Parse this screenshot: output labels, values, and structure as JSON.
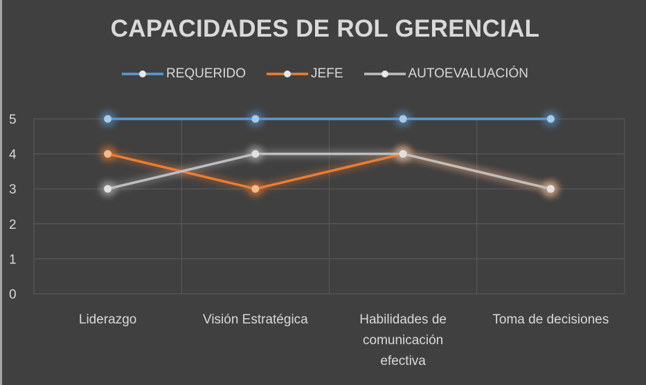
{
  "chart_data": {
    "type": "line",
    "title": "CAPACIDADES DE ROL GERENCIAL",
    "categories": [
      [
        "Liderazgo"
      ],
      [
        "Visión Estratégica"
      ],
      [
        "Habilidades de",
        "comunicación",
        "efectiva"
      ],
      [
        "Toma de decisiones"
      ]
    ],
    "series": [
      {
        "name": "REQUERIDO",
        "color": "#5b9bd5",
        "values": [
          5,
          5,
          5,
          5
        ]
      },
      {
        "name": "JEFE",
        "color": "#ed7d31",
        "values": [
          4,
          3,
          4,
          3
        ]
      },
      {
        "name": "AUTOEVALUACIÓN",
        "color": "#bfbfbf",
        "values": [
          3,
          4,
          4,
          3
        ]
      }
    ],
    "ylim": [
      0,
      5
    ],
    "yticks": [
      0,
      1,
      2,
      3,
      4,
      5
    ],
    "xlabel": "",
    "ylabel": "",
    "grid": true,
    "legend_position": "top"
  }
}
